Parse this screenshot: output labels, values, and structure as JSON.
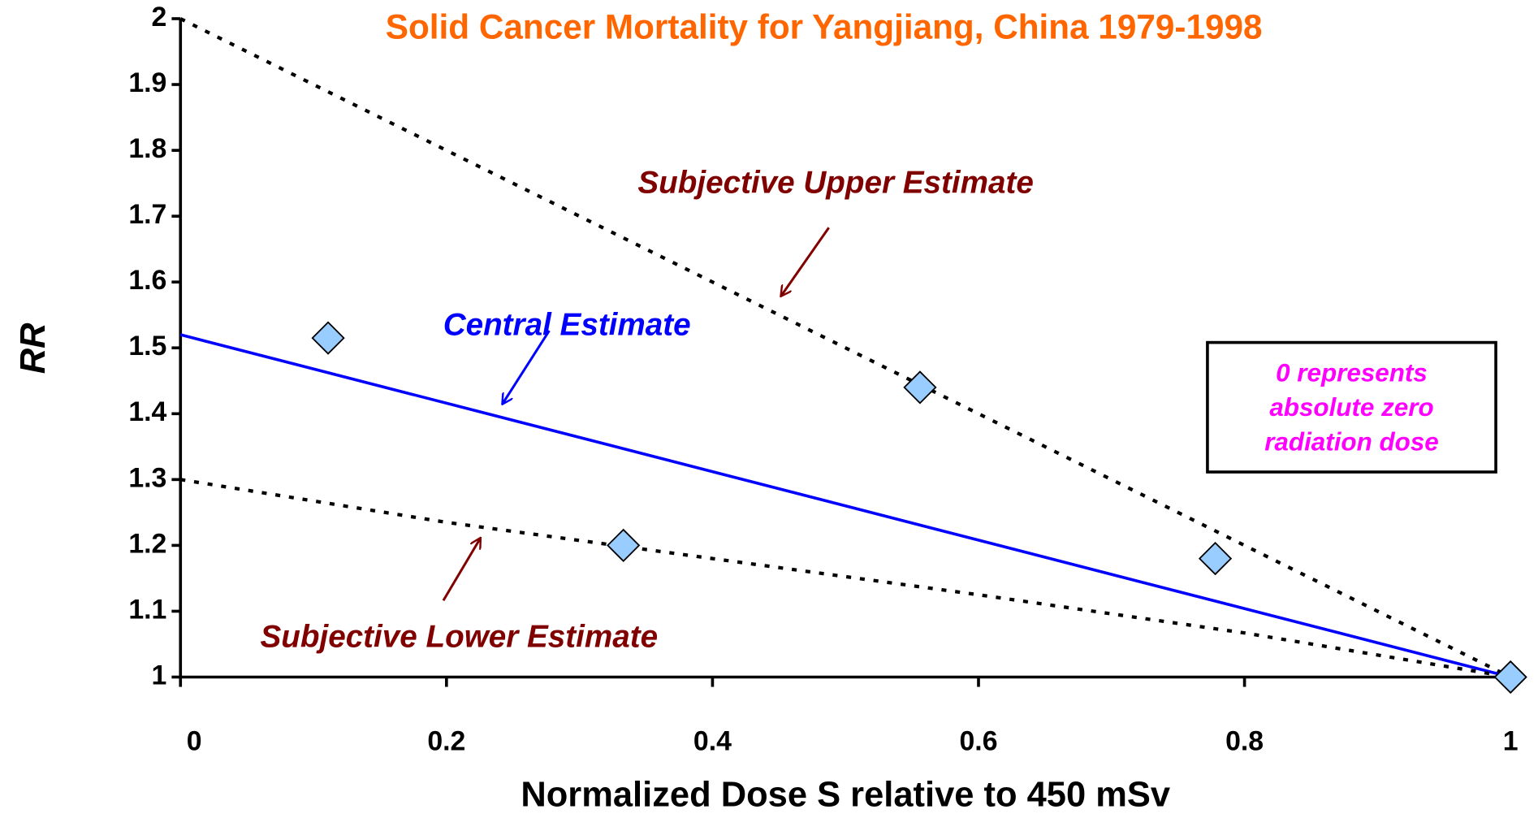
{
  "chart_data": {
    "type": "scatter",
    "title": "Solid Cancer Mortality for Yangjiang, China 1979-1998",
    "title_color": "#ff6600",
    "xlabel": "Normalized Dose S relative to 450 mSv",
    "ylabel": "RR",
    "xlim": [
      0,
      1
    ],
    "ylim": [
      1,
      2
    ],
    "xticks": [
      0,
      0.2,
      0.4,
      0.6,
      0.8,
      1
    ],
    "xtick_label_colors": [
      "#ff00ff",
      "#000000",
      "#000000",
      "#000000",
      "#000000",
      "#000000"
    ],
    "yticks": [
      1,
      1.1,
      1.2,
      1.3,
      1.4,
      1.5,
      1.6,
      1.7,
      1.8,
      1.9,
      2
    ],
    "grid": false,
    "series": [
      {
        "name": "Subjective Upper Estimate",
        "type": "line",
        "style": "dotted",
        "color": "#000000",
        "label_color": "#800000",
        "x": [
          0,
          1
        ],
        "values": [
          2.0,
          1.0
        ]
      },
      {
        "name": "Central Estimate",
        "type": "line",
        "style": "solid",
        "color": "#0000ff",
        "label_color": "#0000ff",
        "x": [
          0,
          1
        ],
        "values": [
          1.52,
          1.0
        ]
      },
      {
        "name": "Subjective Lower Estimate",
        "type": "line",
        "style": "dotted",
        "color": "#000000",
        "label_color": "#800000",
        "x": [
          0,
          0.2,
          0.4,
          0.6,
          0.8,
          1
        ],
        "values": [
          1.3,
          1.235,
          1.18,
          1.125,
          1.067,
          1.0
        ]
      },
      {
        "type": "scatter",
        "marker": "diamond",
        "color": "#99ccff",
        "x": [
          0.111,
          0.333,
          0.556,
          0.778,
          1.0
        ],
        "values": [
          1.515,
          1.2,
          1.44,
          1.18,
          1.0
        ]
      }
    ],
    "note_box": {
      "lines": [
        "0 represents",
        "absolute zero",
        "radiation dose"
      ],
      "color": "#ff00ff"
    }
  }
}
